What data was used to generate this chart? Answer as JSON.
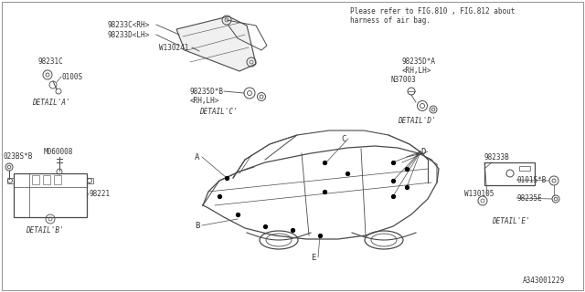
{
  "bg_color": "#ffffff",
  "line_color": "#4a4a4a",
  "text_color": "#333333",
  "title_note": "Please refer to FIG.810 , FIG.812 about\nharness of air bag.",
  "footer": "A343001229",
  "part_labels": {
    "detail_a_main": "98231C",
    "detail_a_screw": "0100S",
    "detail_b_main": "98221",
    "detail_b_bolt": "023BS*B",
    "detail_b_bolt2": "M060008",
    "detail_c_top": "98233C<RH>",
    "detail_c_bot": "98233D<LH>",
    "detail_c_bolt": "W130241",
    "detail_c_sensor": "98235D*B\n<RH,LH>",
    "detail_d_main": "98235D*A\n<RH,LH>",
    "detail_d_nut": "N37003",
    "detail_e_plate": "98233B",
    "detail_e_bolt": "W130105",
    "detail_e_bolt2": "0101S*B",
    "detail_e_screw": "98235E"
  },
  "car_labels": [
    "A",
    "B",
    "C",
    "D",
    "E"
  ],
  "detail_titles": [
    "DETAIL'A'",
    "DETAIL'B'",
    "DETAIL'C'",
    "DETAIL'D'",
    "DETAIL'E'"
  ]
}
